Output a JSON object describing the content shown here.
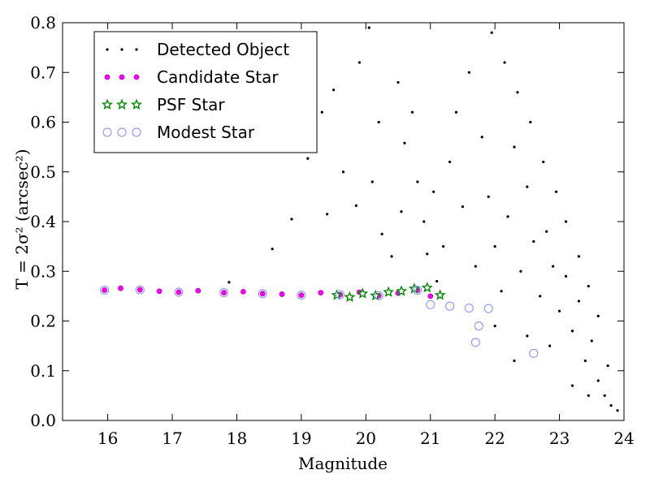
{
  "chart_data": {
    "type": "scatter",
    "xlabel": "Magnitude",
    "ylabel": "T = 2σ² (arcsec²)",
    "xlim": [
      15.3,
      24
    ],
    "ylim": [
      0,
      0.8
    ],
    "xticks": [
      "16",
      "17",
      "18",
      "19",
      "20",
      "21",
      "22",
      "23",
      "24"
    ],
    "yticks": [
      "0.0",
      "0.1",
      "0.2",
      "0.3",
      "0.4",
      "0.5",
      "0.6",
      "0.7",
      "0.8"
    ],
    "legend_position": "top-left",
    "series": [
      {
        "name": "Detected Object",
        "marker": "dot",
        "color": "#000000",
        "points": [
          [
            17.88,
            0.278
          ],
          [
            18.85,
            0.405
          ],
          [
            18.55,
            0.345
          ],
          [
            19.05,
            0.56
          ],
          [
            19.1,
            0.527
          ],
          [
            19.32,
            0.62
          ],
          [
            19.5,
            0.665
          ],
          [
            19.65,
            0.5
          ],
          [
            19.4,
            0.415
          ],
          [
            19.85,
            0.432
          ],
          [
            20.1,
            0.48
          ],
          [
            20.25,
            0.375
          ],
          [
            20.4,
            0.33
          ],
          [
            20.55,
            0.42
          ],
          [
            20.6,
            0.558
          ],
          [
            20.72,
            0.62
          ],
          [
            20.9,
            0.4
          ],
          [
            20.95,
            0.335
          ],
          [
            21.05,
            0.46
          ],
          [
            21.1,
            0.28
          ],
          [
            20.8,
            0.48
          ],
          [
            20.2,
            0.6
          ],
          [
            19.9,
            0.72
          ],
          [
            20.05,
            0.79
          ],
          [
            20.5,
            0.68
          ],
          [
            21.2,
            0.35
          ],
          [
            21.3,
            0.52
          ],
          [
            21.5,
            0.43
          ],
          [
            21.7,
            0.31
          ],
          [
            21.4,
            0.62
          ],
          [
            21.6,
            0.7
          ],
          [
            21.8,
            0.57
          ],
          [
            21.9,
            0.45
          ],
          [
            22.0,
            0.35
          ],
          [
            22.1,
            0.26
          ],
          [
            22.2,
            0.41
          ],
          [
            22.3,
            0.55
          ],
          [
            22.4,
            0.3
          ],
          [
            22.5,
            0.47
          ],
          [
            22.6,
            0.36
          ],
          [
            22.7,
            0.25
          ],
          [
            22.8,
            0.38
          ],
          [
            22.9,
            0.31
          ],
          [
            23.0,
            0.22
          ],
          [
            23.1,
            0.29
          ],
          [
            23.2,
            0.18
          ],
          [
            23.3,
            0.24
          ],
          [
            23.4,
            0.12
          ],
          [
            23.5,
            0.16
          ],
          [
            23.6,
            0.08
          ],
          [
            23.7,
            0.05
          ],
          [
            23.8,
            0.03
          ],
          [
            23.9,
            0.02
          ],
          [
            23.75,
            0.11
          ],
          [
            23.6,
            0.21
          ],
          [
            23.45,
            0.27
          ],
          [
            23.3,
            0.33
          ],
          [
            23.1,
            0.4
          ],
          [
            22.95,
            0.46
          ],
          [
            22.75,
            0.52
          ],
          [
            22.55,
            0.6
          ],
          [
            22.35,
            0.66
          ],
          [
            22.15,
            0.72
          ],
          [
            21.95,
            0.78
          ],
          [
            22.3,
            0.12
          ],
          [
            22.0,
            0.19
          ],
          [
            22.5,
            0.17
          ],
          [
            22.85,
            0.15
          ],
          [
            23.2,
            0.07
          ],
          [
            23.45,
            0.05
          ]
        ]
      },
      {
        "name": "Candidate Star",
        "marker": "circle",
        "color": "#ff00ff",
        "points": [
          [
            15.95,
            0.262
          ],
          [
            16.2,
            0.266
          ],
          [
            16.5,
            0.263
          ],
          [
            16.8,
            0.26
          ],
          [
            17.1,
            0.258
          ],
          [
            17.4,
            0.261
          ],
          [
            17.8,
            0.257
          ],
          [
            18.1,
            0.259
          ],
          [
            18.4,
            0.255
          ],
          [
            18.7,
            0.254
          ],
          [
            19.0,
            0.252
          ],
          [
            19.3,
            0.257
          ],
          [
            19.6,
            0.253
          ],
          [
            19.9,
            0.258
          ],
          [
            20.2,
            0.251
          ],
          [
            20.5,
            0.256
          ],
          [
            20.8,
            0.262
          ],
          [
            21.0,
            0.25
          ]
        ]
      },
      {
        "name": "PSF Star",
        "marker": "star",
        "color": "#008800",
        "points": [
          [
            19.55,
            0.252
          ],
          [
            19.75,
            0.248
          ],
          [
            19.95,
            0.255
          ],
          [
            20.15,
            0.251
          ],
          [
            20.35,
            0.258
          ],
          [
            20.55,
            0.26
          ],
          [
            20.75,
            0.265
          ],
          [
            20.95,
            0.267
          ],
          [
            21.15,
            0.252
          ]
        ]
      },
      {
        "name": "Modest Star",
        "marker": "open-circle",
        "color": "#9999ff",
        "points": [
          [
            15.95,
            0.262
          ],
          [
            16.5,
            0.263
          ],
          [
            17.1,
            0.258
          ],
          [
            17.8,
            0.257
          ],
          [
            18.4,
            0.255
          ],
          [
            19.0,
            0.252
          ],
          [
            19.6,
            0.253
          ],
          [
            20.2,
            0.251
          ],
          [
            20.8,
            0.262
          ],
          [
            21.0,
            0.233
          ],
          [
            21.3,
            0.23
          ],
          [
            21.6,
            0.226
          ],
          [
            21.9,
            0.225
          ],
          [
            21.75,
            0.19
          ],
          [
            21.7,
            0.157
          ],
          [
            22.6,
            0.135
          ]
        ]
      }
    ]
  }
}
